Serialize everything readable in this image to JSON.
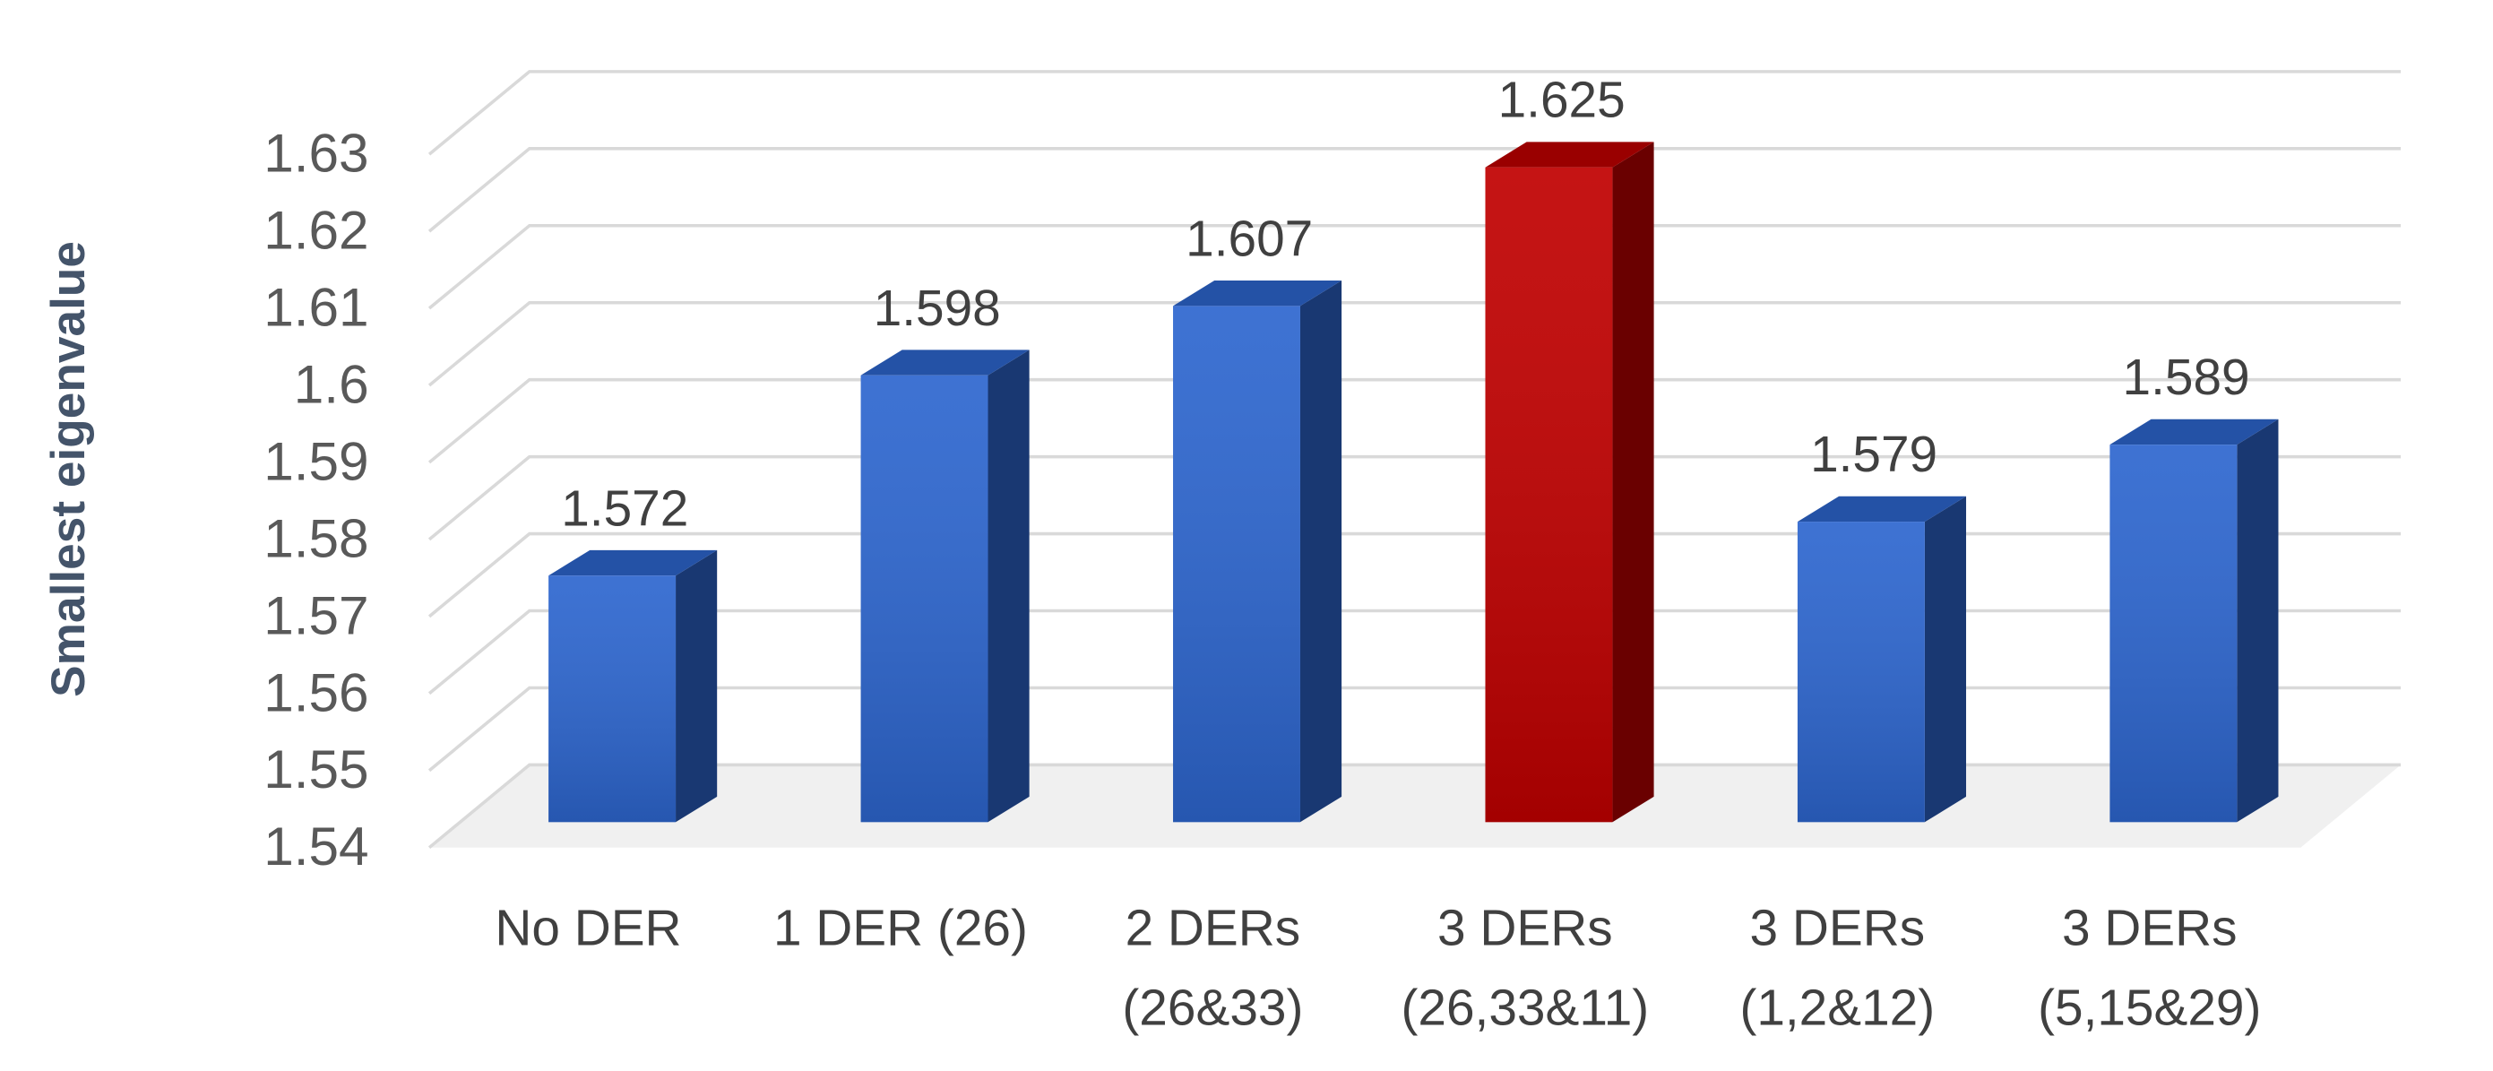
{
  "chart_data": {
    "type": "bar3d",
    "y_label": "Smallest eigenvalue",
    "categories": [
      [
        "No DER"
      ],
      [
        "1 DER (26)"
      ],
      [
        "2 DERs",
        "(26&33)"
      ],
      [
        "3 DERs",
        "(26,33&11)"
      ],
      [
        "3 DERs",
        "(1,2&12)"
      ],
      [
        "3 DERs",
        "(5,15&29)"
      ]
    ],
    "values": [
      1.572,
      1.598,
      1.607,
      1.625,
      1.579,
      1.589
    ],
    "colors": [
      "#2d66cf",
      "#2d66cf",
      "#2d66cf",
      "#c00000",
      "#2d66cf",
      "#2d66cf"
    ],
    "ylim": [
      1.54,
      1.63
    ],
    "yticks": [
      1.54,
      1.55,
      1.56,
      1.57,
      1.58,
      1.59,
      1.6,
      1.61,
      1.62,
      1.63
    ],
    "grid": true
  }
}
